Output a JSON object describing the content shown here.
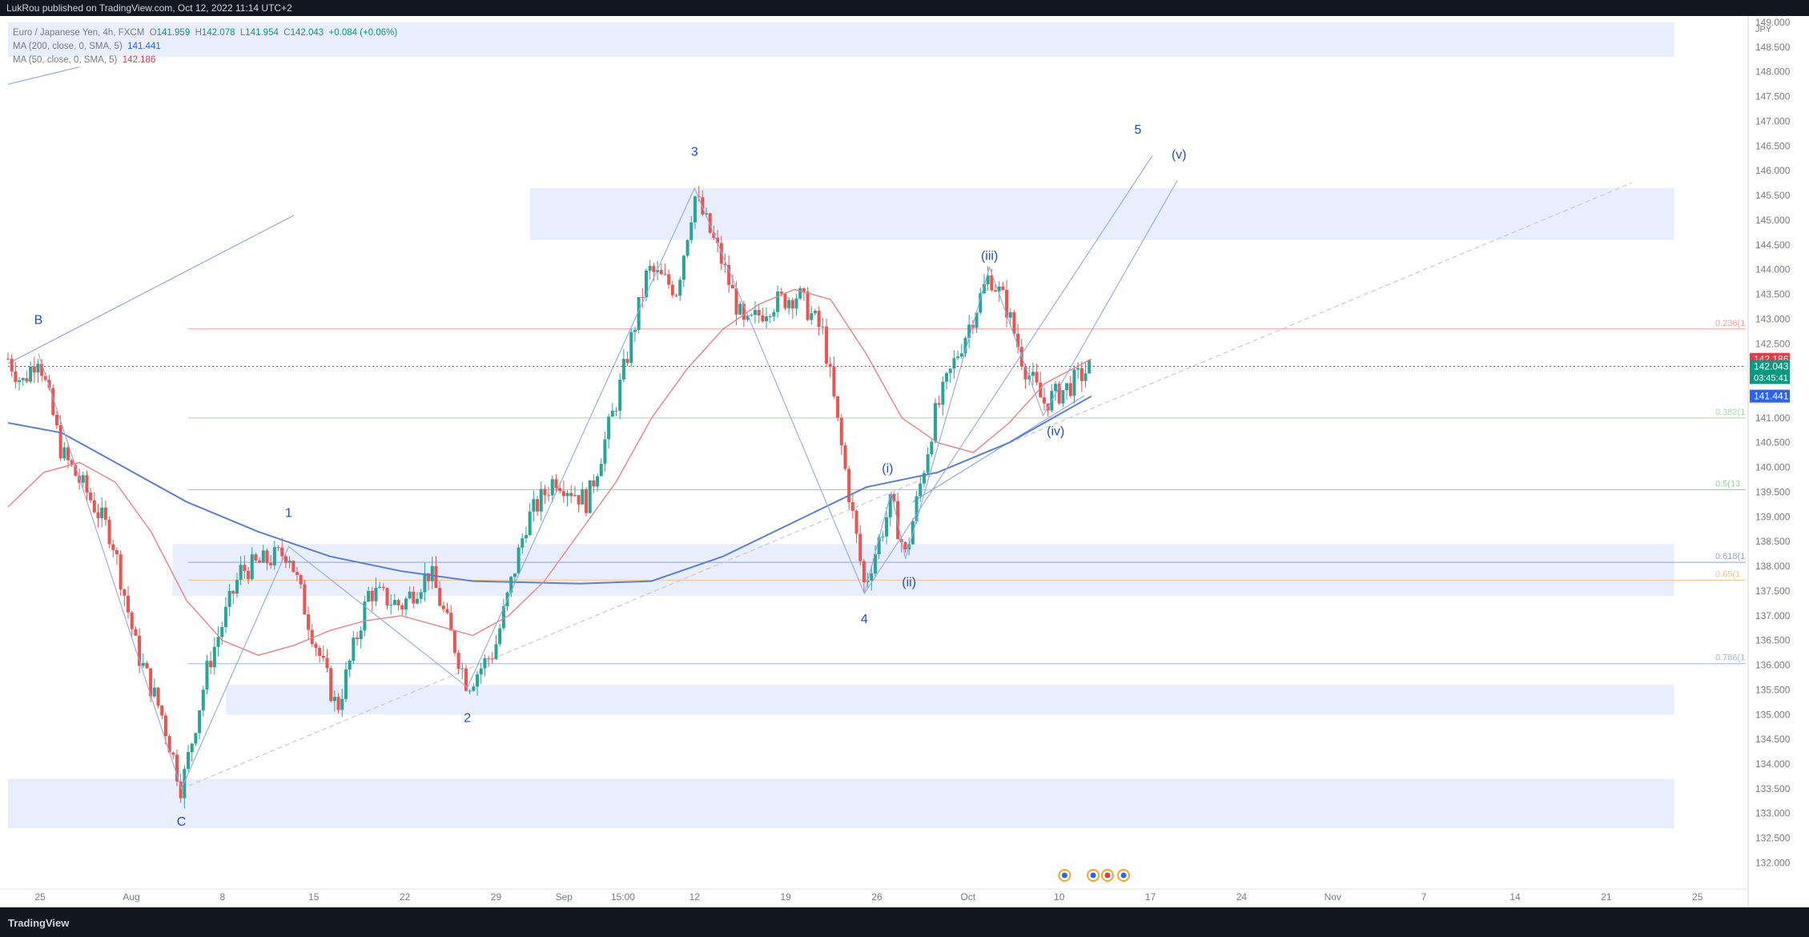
{
  "header": {
    "publisher": "LukRou published on TradingView.com, Oct 12, 2022 11:14 UTC+2"
  },
  "legend": {
    "symbol": "Euro / Japanese Yen, 4h, FXCM",
    "ohlc": {
      "o_label": "O",
      "o": "141.959",
      "h_label": "H",
      "h": "142.078",
      "l_label": "L",
      "l": "141.954",
      "c_label": "C",
      "c": "142.043",
      "chg": "+0.084 (+0.06%)"
    },
    "ma200_label": "MA (200, close, 0, SMA, 5)",
    "ma200_value": "141.441",
    "ma50_label": "MA (50, close, 0, SMA, 5)",
    "ma50_value": "142.186"
  },
  "footer": {
    "brand": "TradingView"
  },
  "chart_data": {
    "type": "candlestick",
    "currency": "JPY",
    "colors": {
      "up": "#26a69a",
      "down": "#ef5350",
      "ma200": "#5b7fd8",
      "ma50": "#f08080",
      "zone": "#e8eefb",
      "wave": "#8fa9e8",
      "label": "#1e4fc7"
    },
    "ylim": [
      131.7,
      149.0
    ],
    "y_ticks": [
      "149.000",
      "148.500",
      "148.000",
      "147.500",
      "147.000",
      "146.500",
      "146.000",
      "145.500",
      "145.000",
      "144.500",
      "144.000",
      "143.500",
      "143.000",
      "142.500",
      "142.000",
      "141.500",
      "141.000",
      "140.500",
      "140.000",
      "139.500",
      "139.000",
      "138.500",
      "138.000",
      "137.500",
      "137.000",
      "136.500",
      "136.000",
      "135.500",
      "135.000",
      "134.500",
      "134.000",
      "133.500",
      "133.000",
      "132.500",
      "132.000"
    ],
    "x_ticks": [
      {
        "t": 0.9,
        "label": "25"
      },
      {
        "t": 3.45,
        "label": "Aug"
      },
      {
        "t": 6.0,
        "label": "8"
      },
      {
        "t": 8.55,
        "label": "15"
      },
      {
        "t": 11.1,
        "label": "22"
      },
      {
        "t": 13.65,
        "label": "29"
      },
      {
        "t": 15.55,
        "label": "Sep"
      },
      {
        "t": 17.2,
        "label": "15:00"
      },
      {
        "t": 19.2,
        "label": "12"
      },
      {
        "t": 21.75,
        "label": "19"
      },
      {
        "t": 24.3,
        "label": "26"
      },
      {
        "t": 26.85,
        "label": "Oct"
      },
      {
        "t": 29.4,
        "label": "10"
      },
      {
        "t": 31.95,
        "label": "17"
      },
      {
        "t": 34.5,
        "label": "24"
      },
      {
        "t": 37.05,
        "label": "Nov"
      },
      {
        "t": 39.6,
        "label": "7"
      },
      {
        "t": 42.15,
        "label": "14"
      },
      {
        "t": 44.7,
        "label": "21"
      },
      {
        "t": 47.25,
        "label": "25"
      }
    ],
    "x_range": [
      0,
      48.6
    ],
    "price_badges": [
      {
        "price": 142.186,
        "label": "142.186",
        "color": "#f23645"
      },
      {
        "price": 142.043,
        "label": "142.043",
        "sub": "03:45:41",
        "color": "#089981"
      },
      {
        "price": 141.441,
        "label": "141.441",
        "color": "#2962ff"
      }
    ],
    "current_price": 142.043,
    "zones": [
      {
        "t0": 0,
        "t1": 46.6,
        "lo": 148.3,
        "hi": 149.0
      },
      {
        "t0": 14.6,
        "t1": 46.6,
        "lo": 144.6,
        "hi": 145.65
      },
      {
        "t0": 4.6,
        "t1": 46.6,
        "lo": 137.4,
        "hi": 138.45
      },
      {
        "t0": 6.1,
        "t1": 46.6,
        "lo": 135.0,
        "hi": 135.6
      },
      {
        "t0": 0,
        "t1": 46.6,
        "lo": 132.7,
        "hi": 133.7
      }
    ],
    "fib_levels": [
      {
        "price": 142.8,
        "label": "0.236(1",
        "color": "#f4a09a"
      },
      {
        "price": 141.0,
        "label": "0.382(1",
        "color": "#a5d6a7"
      },
      {
        "price": 139.55,
        "label": "0.5(13",
        "color": "#8fd19e"
      },
      {
        "price": 138.08,
        "label": "0.618(1",
        "color": "#90a4d4"
      },
      {
        "price": 137.72,
        "label": "0.65(1",
        "color": "#f9c38d"
      },
      {
        "price": 136.03,
        "label": "0.786(1",
        "color": "#9fb7e0"
      }
    ],
    "wave_path": [
      {
        "t": 0.85,
        "p": 142.3
      },
      {
        "t": 4.85,
        "p": 133.5
      },
      {
        "t": 7.85,
        "p": 138.4
      },
      {
        "t": 12.85,
        "p": 135.55
      },
      {
        "t": 19.2,
        "p": 145.65
      },
      {
        "t": 23.95,
        "p": 137.45
      },
      {
        "t": 32.0,
        "p": 146.3
      }
    ],
    "subwave_path": [
      {
        "t": 23.95,
        "p": 137.45
      },
      {
        "t": 24.7,
        "p": 139.5
      },
      {
        "t": 25.1,
        "p": 138.15
      },
      {
        "t": 27.45,
        "p": 144.05
      },
      {
        "t": 28.95,
        "p": 141.05
      },
      {
        "t": 32.7,
        "p": 145.8
      }
    ],
    "trend_lines": [
      {
        "t0": 0,
        "p0": 142.1,
        "t1": 8.0,
        "p1": 145.1,
        "dashed": false
      },
      {
        "t0": 0,
        "p0": 147.75,
        "t1": 2.0,
        "p1": 148.1,
        "dashed": false
      },
      {
        "t0": 4.85,
        "p0": 133.5,
        "t1": 45.4,
        "p1": 145.75,
        "dashed": true
      },
      {
        "t0": 25.3,
        "p0": 139.3,
        "t1": 30.1,
        "p1": 141.45,
        "dashed": false
      }
    ],
    "wave_labels": [
      {
        "text": "B",
        "t": 0.85,
        "p": 142.9
      },
      {
        "text": "C",
        "t": 4.85,
        "p": 132.75
      },
      {
        "text": "1",
        "t": 7.85,
        "p": 139.0
      },
      {
        "text": "2",
        "t": 12.85,
        "p": 134.85
      },
      {
        "text": "3",
        "t": 19.2,
        "p": 146.3
      },
      {
        "text": "4",
        "t": 23.95,
        "p": 136.85
      },
      {
        "text": "5",
        "t": 31.6,
        "p": 146.75
      },
      {
        "text": "(i)",
        "t": 24.6,
        "p": 139.9
      },
      {
        "text": "(ii)",
        "t": 25.2,
        "p": 137.6
      },
      {
        "text": "(iii)",
        "t": 27.45,
        "p": 144.2
      },
      {
        "text": "(iv)",
        "t": 29.3,
        "p": 140.65
      },
      {
        "text": "(v)",
        "t": 32.75,
        "p": 146.25
      }
    ],
    "anchors": [
      {
        "t": 0,
        "p": 142.2
      },
      {
        "t": 0.4,
        "p": 141.7
      },
      {
        "t": 0.85,
        "p": 142.3
      },
      {
        "t": 1.5,
        "p": 140.3
      },
      {
        "t": 2.2,
        "p": 139.5
      },
      {
        "t": 2.9,
        "p": 138.6
      },
      {
        "t": 3.6,
        "p": 136.3
      },
      {
        "t": 4.3,
        "p": 135.0
      },
      {
        "t": 4.85,
        "p": 133.5
      },
      {
        "t": 5.6,
        "p": 136.0
      },
      {
        "t": 6.5,
        "p": 137.9
      },
      {
        "t": 7.85,
        "p": 138.3
      },
      {
        "t": 8.4,
        "p": 136.9
      },
      {
        "t": 9.2,
        "p": 135.1
      },
      {
        "t": 10.1,
        "p": 137.5
      },
      {
        "t": 11.0,
        "p": 137.2
      },
      {
        "t": 11.8,
        "p": 137.9
      },
      {
        "t": 12.85,
        "p": 135.6
      },
      {
        "t": 13.6,
        "p": 136.3
      },
      {
        "t": 14.5,
        "p": 138.9
      },
      {
        "t": 15.3,
        "p": 139.8
      },
      {
        "t": 16.2,
        "p": 139.3
      },
      {
        "t": 17.0,
        "p": 141.3
      },
      {
        "t": 17.9,
        "p": 144.0
      },
      {
        "t": 18.7,
        "p": 143.6
      },
      {
        "t": 19.2,
        "p": 145.5
      },
      {
        "t": 19.9,
        "p": 144.3
      },
      {
        "t": 20.6,
        "p": 142.8
      },
      {
        "t": 21.3,
        "p": 143.3
      },
      {
        "t": 22.1,
        "p": 143.5
      },
      {
        "t": 22.8,
        "p": 142.7
      },
      {
        "t": 23.4,
        "p": 140.0
      },
      {
        "t": 23.95,
        "p": 137.6
      },
      {
        "t": 24.7,
        "p": 139.3
      },
      {
        "t": 25.1,
        "p": 138.2
      },
      {
        "t": 25.9,
        "p": 141.0
      },
      {
        "t": 26.5,
        "p": 142.2
      },
      {
        "t": 27.45,
        "p": 143.9
      },
      {
        "t": 27.9,
        "p": 143.3
      },
      {
        "t": 28.4,
        "p": 142.1
      },
      {
        "t": 28.95,
        "p": 141.3
      },
      {
        "t": 29.6,
        "p": 141.6
      },
      {
        "t": 30.3,
        "p": 142.04
      }
    ],
    "ma200_points": [
      {
        "t": 0,
        "p": 140.9
      },
      {
        "t": 1.5,
        "p": 140.7
      },
      {
        "t": 3.0,
        "p": 140.1
      },
      {
        "t": 5.0,
        "p": 139.3
      },
      {
        "t": 7.0,
        "p": 138.7
      },
      {
        "t": 9.0,
        "p": 138.2
      },
      {
        "t": 11.0,
        "p": 137.9
      },
      {
        "t": 13.0,
        "p": 137.7
      },
      {
        "t": 16.0,
        "p": 137.65
      },
      {
        "t": 18.0,
        "p": 137.7
      },
      {
        "t": 20.0,
        "p": 138.2
      },
      {
        "t": 22.0,
        "p": 138.9
      },
      {
        "t": 24.0,
        "p": 139.6
      },
      {
        "t": 26.0,
        "p": 139.9
      },
      {
        "t": 28.0,
        "p": 140.5
      },
      {
        "t": 30.3,
        "p": 141.44
      }
    ],
    "ma50_points": [
      {
        "t": 0,
        "p": 139.2
      },
      {
        "t": 1.0,
        "p": 139.9
      },
      {
        "t": 2.0,
        "p": 140.1
      },
      {
        "t": 3.0,
        "p": 139.7
      },
      {
        "t": 4.0,
        "p": 138.7
      },
      {
        "t": 5.0,
        "p": 137.3
      },
      {
        "t": 6.0,
        "p": 136.5
      },
      {
        "t": 7.0,
        "p": 136.2
      },
      {
        "t": 8.0,
        "p": 136.4
      },
      {
        "t": 9.0,
        "p": 136.7
      },
      {
        "t": 10.0,
        "p": 136.9
      },
      {
        "t": 11.0,
        "p": 137.0
      },
      {
        "t": 12.0,
        "p": 136.8
      },
      {
        "t": 13.0,
        "p": 136.6
      },
      {
        "t": 14.0,
        "p": 137.0
      },
      {
        "t": 15.0,
        "p": 137.7
      },
      {
        "t": 16.0,
        "p": 138.7
      },
      {
        "t": 17.0,
        "p": 139.7
      },
      {
        "t": 18.0,
        "p": 141.0
      },
      {
        "t": 19.0,
        "p": 142.0
      },
      {
        "t": 20.0,
        "p": 142.8
      },
      {
        "t": 21.0,
        "p": 143.3
      },
      {
        "t": 22.0,
        "p": 143.6
      },
      {
        "t": 23.0,
        "p": 143.4
      },
      {
        "t": 24.0,
        "p": 142.3
      },
      {
        "t": 25.0,
        "p": 141.0
      },
      {
        "t": 26.0,
        "p": 140.5
      },
      {
        "t": 27.0,
        "p": 140.3
      },
      {
        "t": 28.0,
        "p": 140.9
      },
      {
        "t": 29.0,
        "p": 141.7
      },
      {
        "t": 30.3,
        "p": 142.19
      }
    ],
    "event_icons": [
      {
        "t": 29.55
      },
      {
        "t": 30.35
      },
      {
        "t": 30.75
      },
      {
        "t": 31.2
      }
    ]
  }
}
